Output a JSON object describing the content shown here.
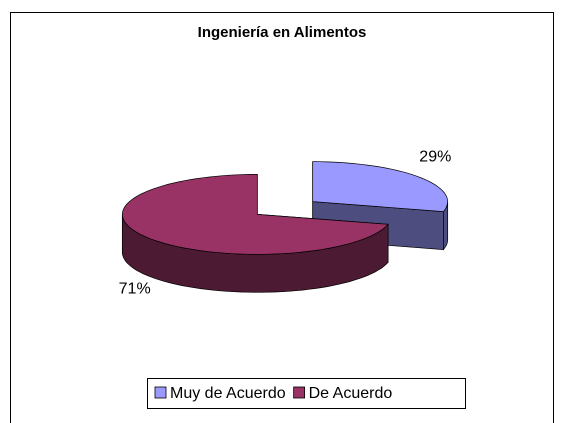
{
  "chart_data": {
    "type": "pie3d",
    "title": "Ingeniería en Alimentos",
    "categories": [
      "Muy de Acuerdo",
      "De Acuerdo"
    ],
    "values": [
      29,
      71
    ],
    "value_labels": [
      "29%",
      "71%"
    ],
    "colors": [
      "#9999ff",
      "#993366"
    ],
    "legend": "bottom"
  }
}
